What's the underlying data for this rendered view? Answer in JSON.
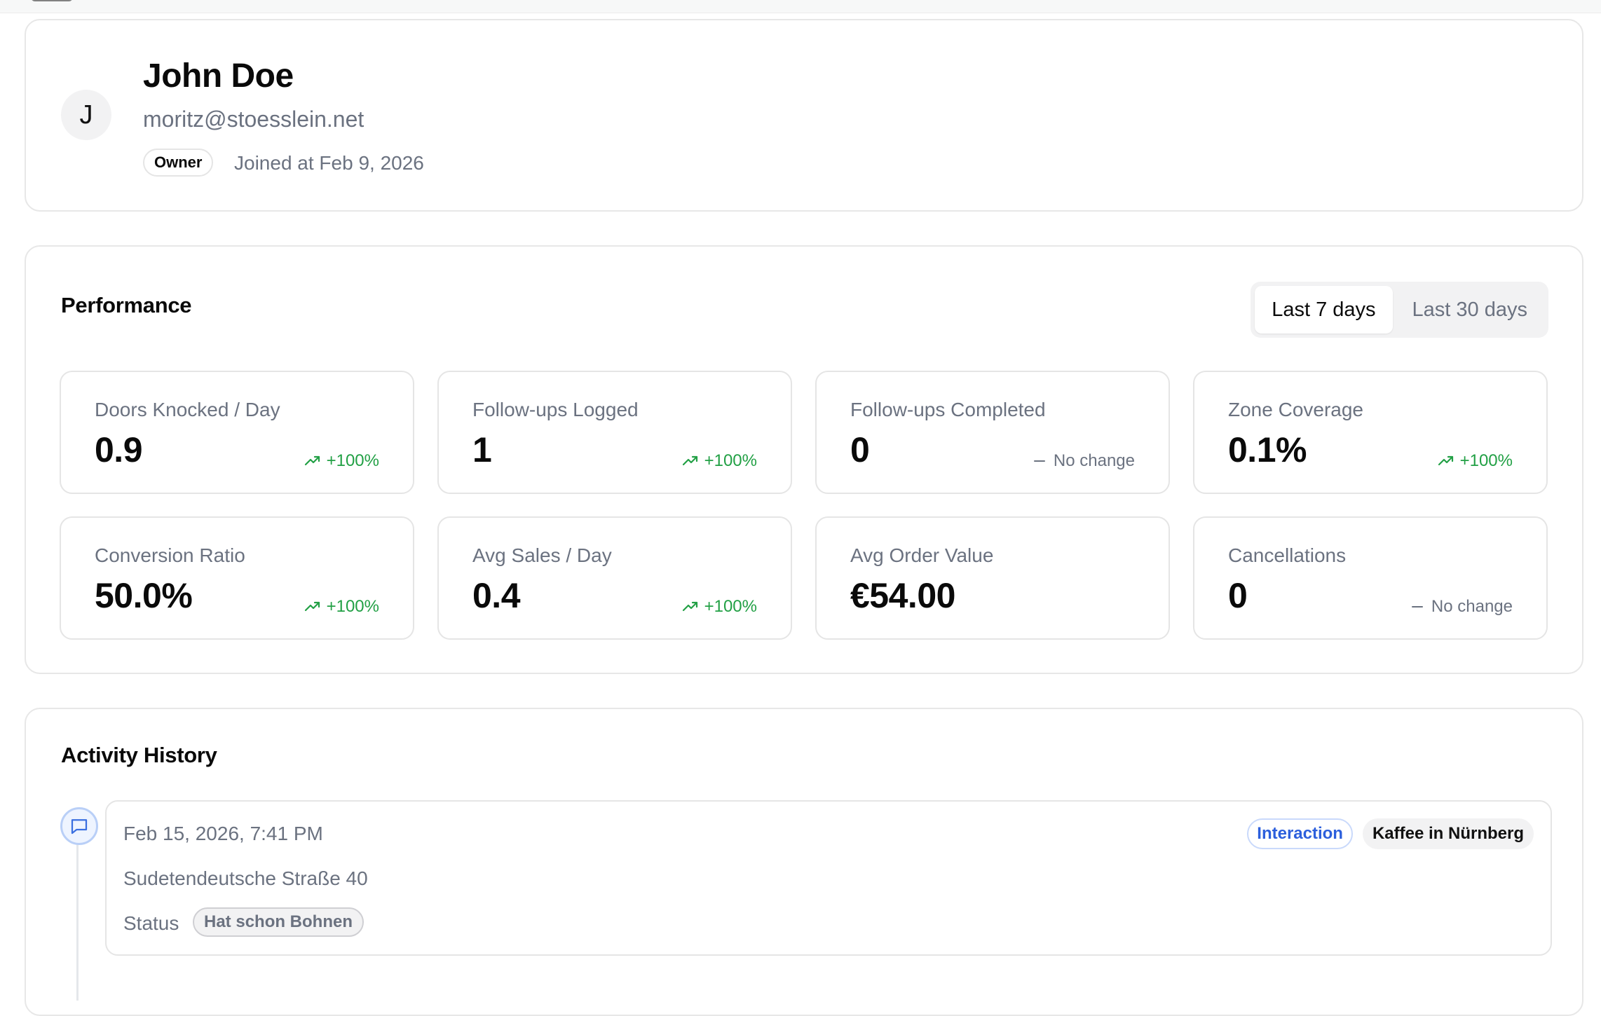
{
  "profile": {
    "avatar_initial": "J",
    "name": "John Doe",
    "email": "moritz@stoesslein.net",
    "role": "Owner",
    "joined": "Joined at Feb 9, 2026"
  },
  "performance": {
    "title": "Performance",
    "ranges": [
      {
        "label": "Last 7 days",
        "active": true
      },
      {
        "label": "Last 30 days",
        "active": false
      }
    ],
    "metrics": [
      {
        "label": "Doors Knocked / Day",
        "value": "0.9",
        "delta": "+100%",
        "trend": "up"
      },
      {
        "label": "Follow-ups Logged",
        "value": "1",
        "delta": "+100%",
        "trend": "up"
      },
      {
        "label": "Follow-ups Completed",
        "value": "0",
        "delta": "No change",
        "trend": "flat"
      },
      {
        "label": "Zone Coverage",
        "value": "0.1%",
        "delta": "+100%",
        "trend": "up"
      },
      {
        "label": "Conversion Ratio",
        "value": "50.0%",
        "delta": "+100%",
        "trend": "up"
      },
      {
        "label": "Avg Sales / Day",
        "value": "0.4",
        "delta": "+100%",
        "trend": "up"
      },
      {
        "label": "Avg Order Value",
        "value": "€54.00",
        "delta": "",
        "trend": "none"
      },
      {
        "label": "Cancellations",
        "value": "0",
        "delta": "No change",
        "trend": "flat"
      }
    ],
    "colors": {
      "up": "#22a045",
      "flat": "#6b7280"
    }
  },
  "activity": {
    "title": "Activity History",
    "entries": [
      {
        "icon": "message-icon",
        "time": "Feb 15, 2026, 7:41 PM",
        "address": "Sudetendeutsche Straße 40",
        "status_label": "Status",
        "status": "Hat schon Bohnen",
        "type_tag": "Interaction",
        "location_tag": "Kaffee in Nürnberg"
      }
    ]
  }
}
